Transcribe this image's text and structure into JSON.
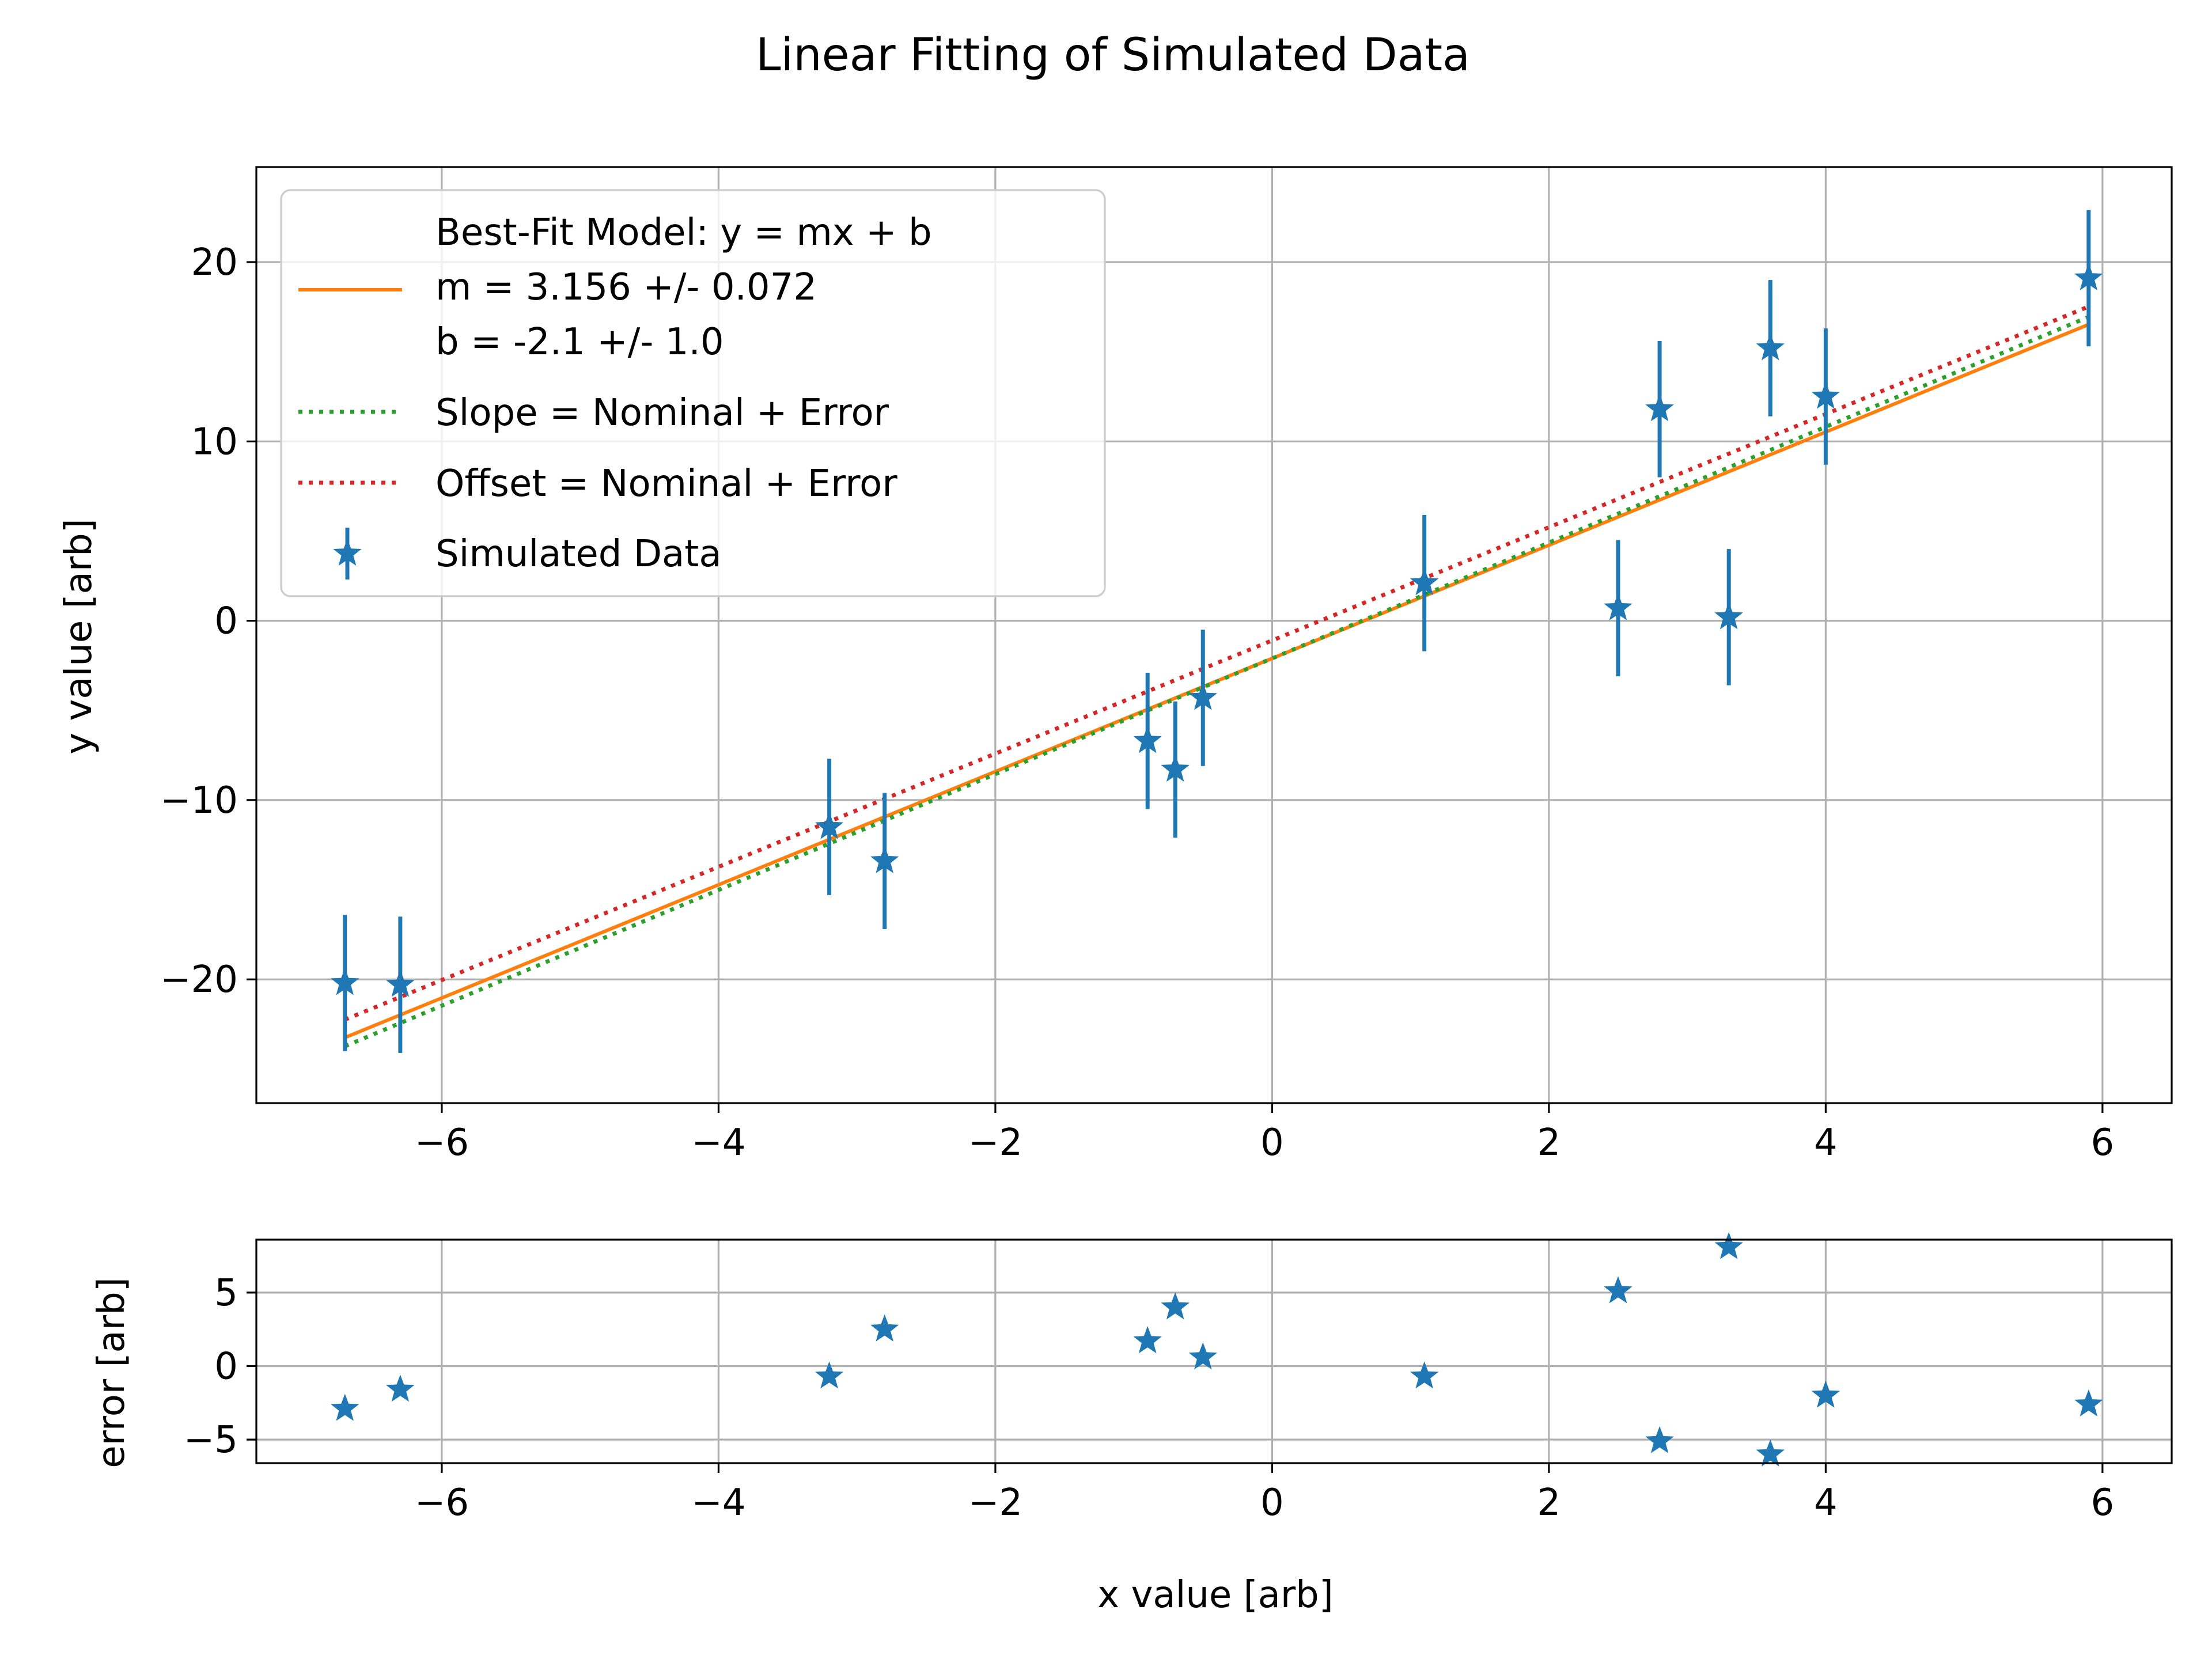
{
  "chart_data": [
    {
      "type": "scatter",
      "title": "Linear Fitting of Simulated Data",
      "xlabel": "",
      "ylabel": "y value [arb]",
      "xlim": [
        -7.34,
        6.5
      ],
      "ylim": [
        -26.9,
        25.3
      ],
      "x_ticks": [
        "−6",
        "−4",
        "−2",
        "0",
        "2",
        "4",
        "6"
      ],
      "x_tick_values": [
        -6,
        -4,
        -2,
        0,
        2,
        4,
        6
      ],
      "y_ticks": [
        "−20",
        "−10",
        "0",
        "10",
        "20"
      ],
      "y_tick_values": [
        -20,
        -10,
        0,
        10,
        20
      ],
      "grid": true,
      "legend_position": "upper-left",
      "legend": {
        "model_lines": [
          "Best-Fit Model: y = mx + b",
          "m = 3.156 +/- 0.072",
          "b = -2.1 +/- 1.0"
        ],
        "slope_label": "Slope = Nominal + Error",
        "offset_label": "Offset = Nominal + Error",
        "data_label": "Simulated Data"
      },
      "series": [
        {
          "kind": "line",
          "style": "solid",
          "color": "#ff7f0e",
          "m": 3.156,
          "b": -2.1,
          "x": [
            -6.7,
            5.9
          ]
        },
        {
          "kind": "line",
          "style": "dotted",
          "color": "#2ca02c",
          "m": 3.228,
          "b": -2.1,
          "x": [
            -6.7,
            5.9
          ]
        },
        {
          "kind": "line",
          "style": "dotted",
          "color": "#d62728",
          "m": 3.156,
          "b": -1.1,
          "x": [
            -6.7,
            5.9
          ]
        },
        {
          "kind": "errorbar",
          "color": "#1f77b4",
          "marker": "star",
          "x": [
            -6.7,
            -6.3,
            -3.2,
            -2.8,
            -0.9,
            -0.7,
            -0.5,
            1.1,
            2.5,
            2.8,
            3.3,
            3.6,
            4.0,
            5.9
          ],
          "y": [
            -20.2,
            -20.3,
            -11.5,
            -13.4,
            -6.7,
            -8.3,
            -4.3,
            2.1,
            0.7,
            11.8,
            0.2,
            15.2,
            12.5,
            19.1
          ],
          "yerr": 3.8
        }
      ]
    },
    {
      "type": "scatter",
      "title": "",
      "xlabel": "x value [arb]",
      "ylabel": "error [arb]",
      "xlim": [
        -7.34,
        6.5
      ],
      "ylim": [
        -6.6,
        8.6
      ],
      "x_ticks": [
        "−6",
        "−4",
        "−2",
        "0",
        "2",
        "4",
        "6"
      ],
      "x_tick_values": [
        -6,
        -4,
        -2,
        0,
        2,
        4,
        6
      ],
      "y_ticks": [
        "−5",
        "0",
        "5"
      ],
      "y_tick_values": [
        -5,
        0,
        5
      ],
      "grid": true,
      "series": [
        {
          "kind": "scatter",
          "color": "#1f77b4",
          "marker": "star",
          "x": [
            -6.7,
            -6.3,
            -3.2,
            -2.8,
            -0.9,
            -0.7,
            -0.5,
            1.1,
            2.5,
            2.8,
            3.3,
            3.6,
            4.0,
            5.9
          ],
          "y": [
            -2.9,
            -1.6,
            -0.7,
            2.5,
            1.7,
            4.0,
            0.6,
            -0.7,
            5.1,
            -5.1,
            8.1,
            -6.0,
            -2.0,
            -2.6
          ]
        }
      ]
    }
  ]
}
